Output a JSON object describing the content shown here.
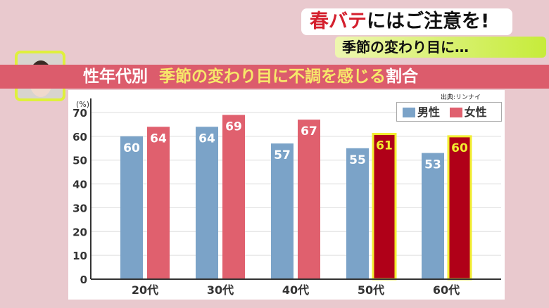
{
  "headline": {
    "red": "春バテ",
    "rest": "にはご注意を!"
  },
  "subheadline": "季節の変わり目に…",
  "title": {
    "prefix": "性年代別",
    "main": "季節の変わり目に不調を感じる",
    "suffix": "割合"
  },
  "source": "出典:リンナイ",
  "colors": {
    "male": "#7ba3c8",
    "female": "#e0606e",
    "highlight_female": "#b00018",
    "highlight_border": "#f2ee30"
  },
  "chart_data": {
    "type": "bar",
    "ylabel": "(%)",
    "ylim": [
      0,
      70
    ],
    "yticks": [
      0,
      10,
      20,
      30,
      40,
      50,
      60,
      70
    ],
    "categories": [
      "20代",
      "30代",
      "40代",
      "50代",
      "60代"
    ],
    "series": [
      {
        "name": "男性",
        "values": [
          60,
          64,
          57,
          55,
          53
        ]
      },
      {
        "name": "女性",
        "values": [
          64,
          69,
          67,
          61,
          60
        ]
      }
    ],
    "highlighted_female": [
      "50代",
      "60代"
    ],
    "grid": true,
    "legend": "top-right"
  }
}
